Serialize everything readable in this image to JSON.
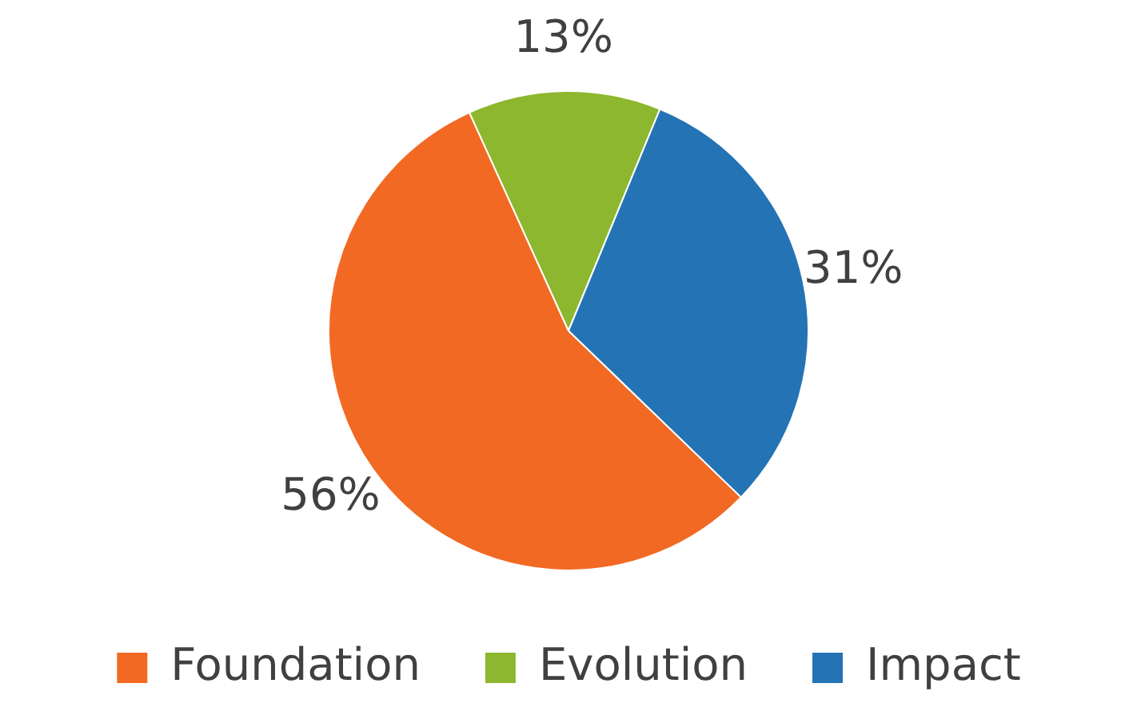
{
  "chart_data": {
    "type": "pie",
    "categories": [
      "Foundation",
      "Evolution",
      "Impact"
    ],
    "values": [
      56,
      13,
      31
    ],
    "colors": [
      "#f26924",
      "#8db72e",
      "#2473b5"
    ],
    "value_labels": [
      "56%",
      "13%",
      "31%"
    ],
    "legend": "bottom"
  }
}
